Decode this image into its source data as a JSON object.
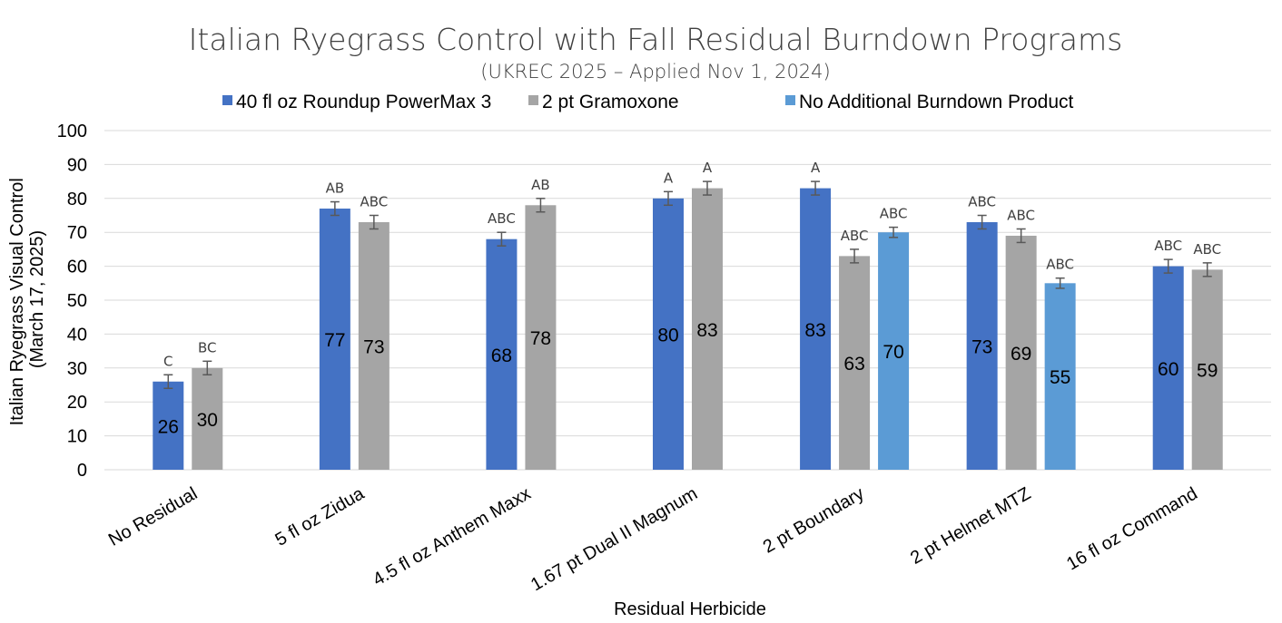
{
  "chart_data": {
    "type": "bar",
    "title": "Italian Ryegrass Control with Fall Residual Burndown Programs",
    "subtitle": "(UKREC 2025 – Applied Nov 1, 2024)",
    "xlabel": "Residual Herbicide",
    "ylabel": [
      "Italian Ryegrass Visual Control",
      "(March 17, 2025)"
    ],
    "ylim": [
      0,
      100
    ],
    "yticks": [
      0,
      10,
      20,
      30,
      40,
      50,
      60,
      70,
      80,
      90,
      100
    ],
    "grid": true,
    "legend_position": "top",
    "categories": [
      "No Residual",
      "5 fl oz Zidua",
      "4.5 fl oz Anthem Maxx",
      "1.67 pt Dual II Magnum",
      "2 pt Boundary",
      "2 pt Helmet MTZ",
      "16 fl oz Command"
    ],
    "series": [
      {
        "name": "40 fl oz Roundup PowerMax 3",
        "color": "#4472C4",
        "values": [
          26,
          77,
          68,
          80,
          83,
          73,
          60
        ],
        "errors": [
          2,
          2,
          2,
          2,
          2,
          2,
          2
        ],
        "letters": [
          "C",
          "AB",
          "ABC",
          "A",
          "A",
          "ABC",
          "ABC"
        ]
      },
      {
        "name": "2 pt Gramoxone",
        "color": "#A5A5A5",
        "values": [
          30,
          73,
          78,
          83,
          63,
          69,
          59
        ],
        "errors": [
          2,
          2,
          2,
          2,
          2,
          2,
          2
        ],
        "letters": [
          "BC",
          "ABC",
          "AB",
          "A",
          "ABC",
          "ABC",
          "ABC"
        ]
      },
      {
        "name": "No Additional Burndown Product",
        "color": "#5B9BD5",
        "values": [
          null,
          null,
          null,
          null,
          70,
          55,
          null
        ],
        "errors": [
          null,
          null,
          null,
          null,
          1.5,
          1.5,
          null
        ],
        "letters": [
          null,
          null,
          null,
          null,
          "ABC",
          "ABC",
          null
        ]
      }
    ]
  }
}
